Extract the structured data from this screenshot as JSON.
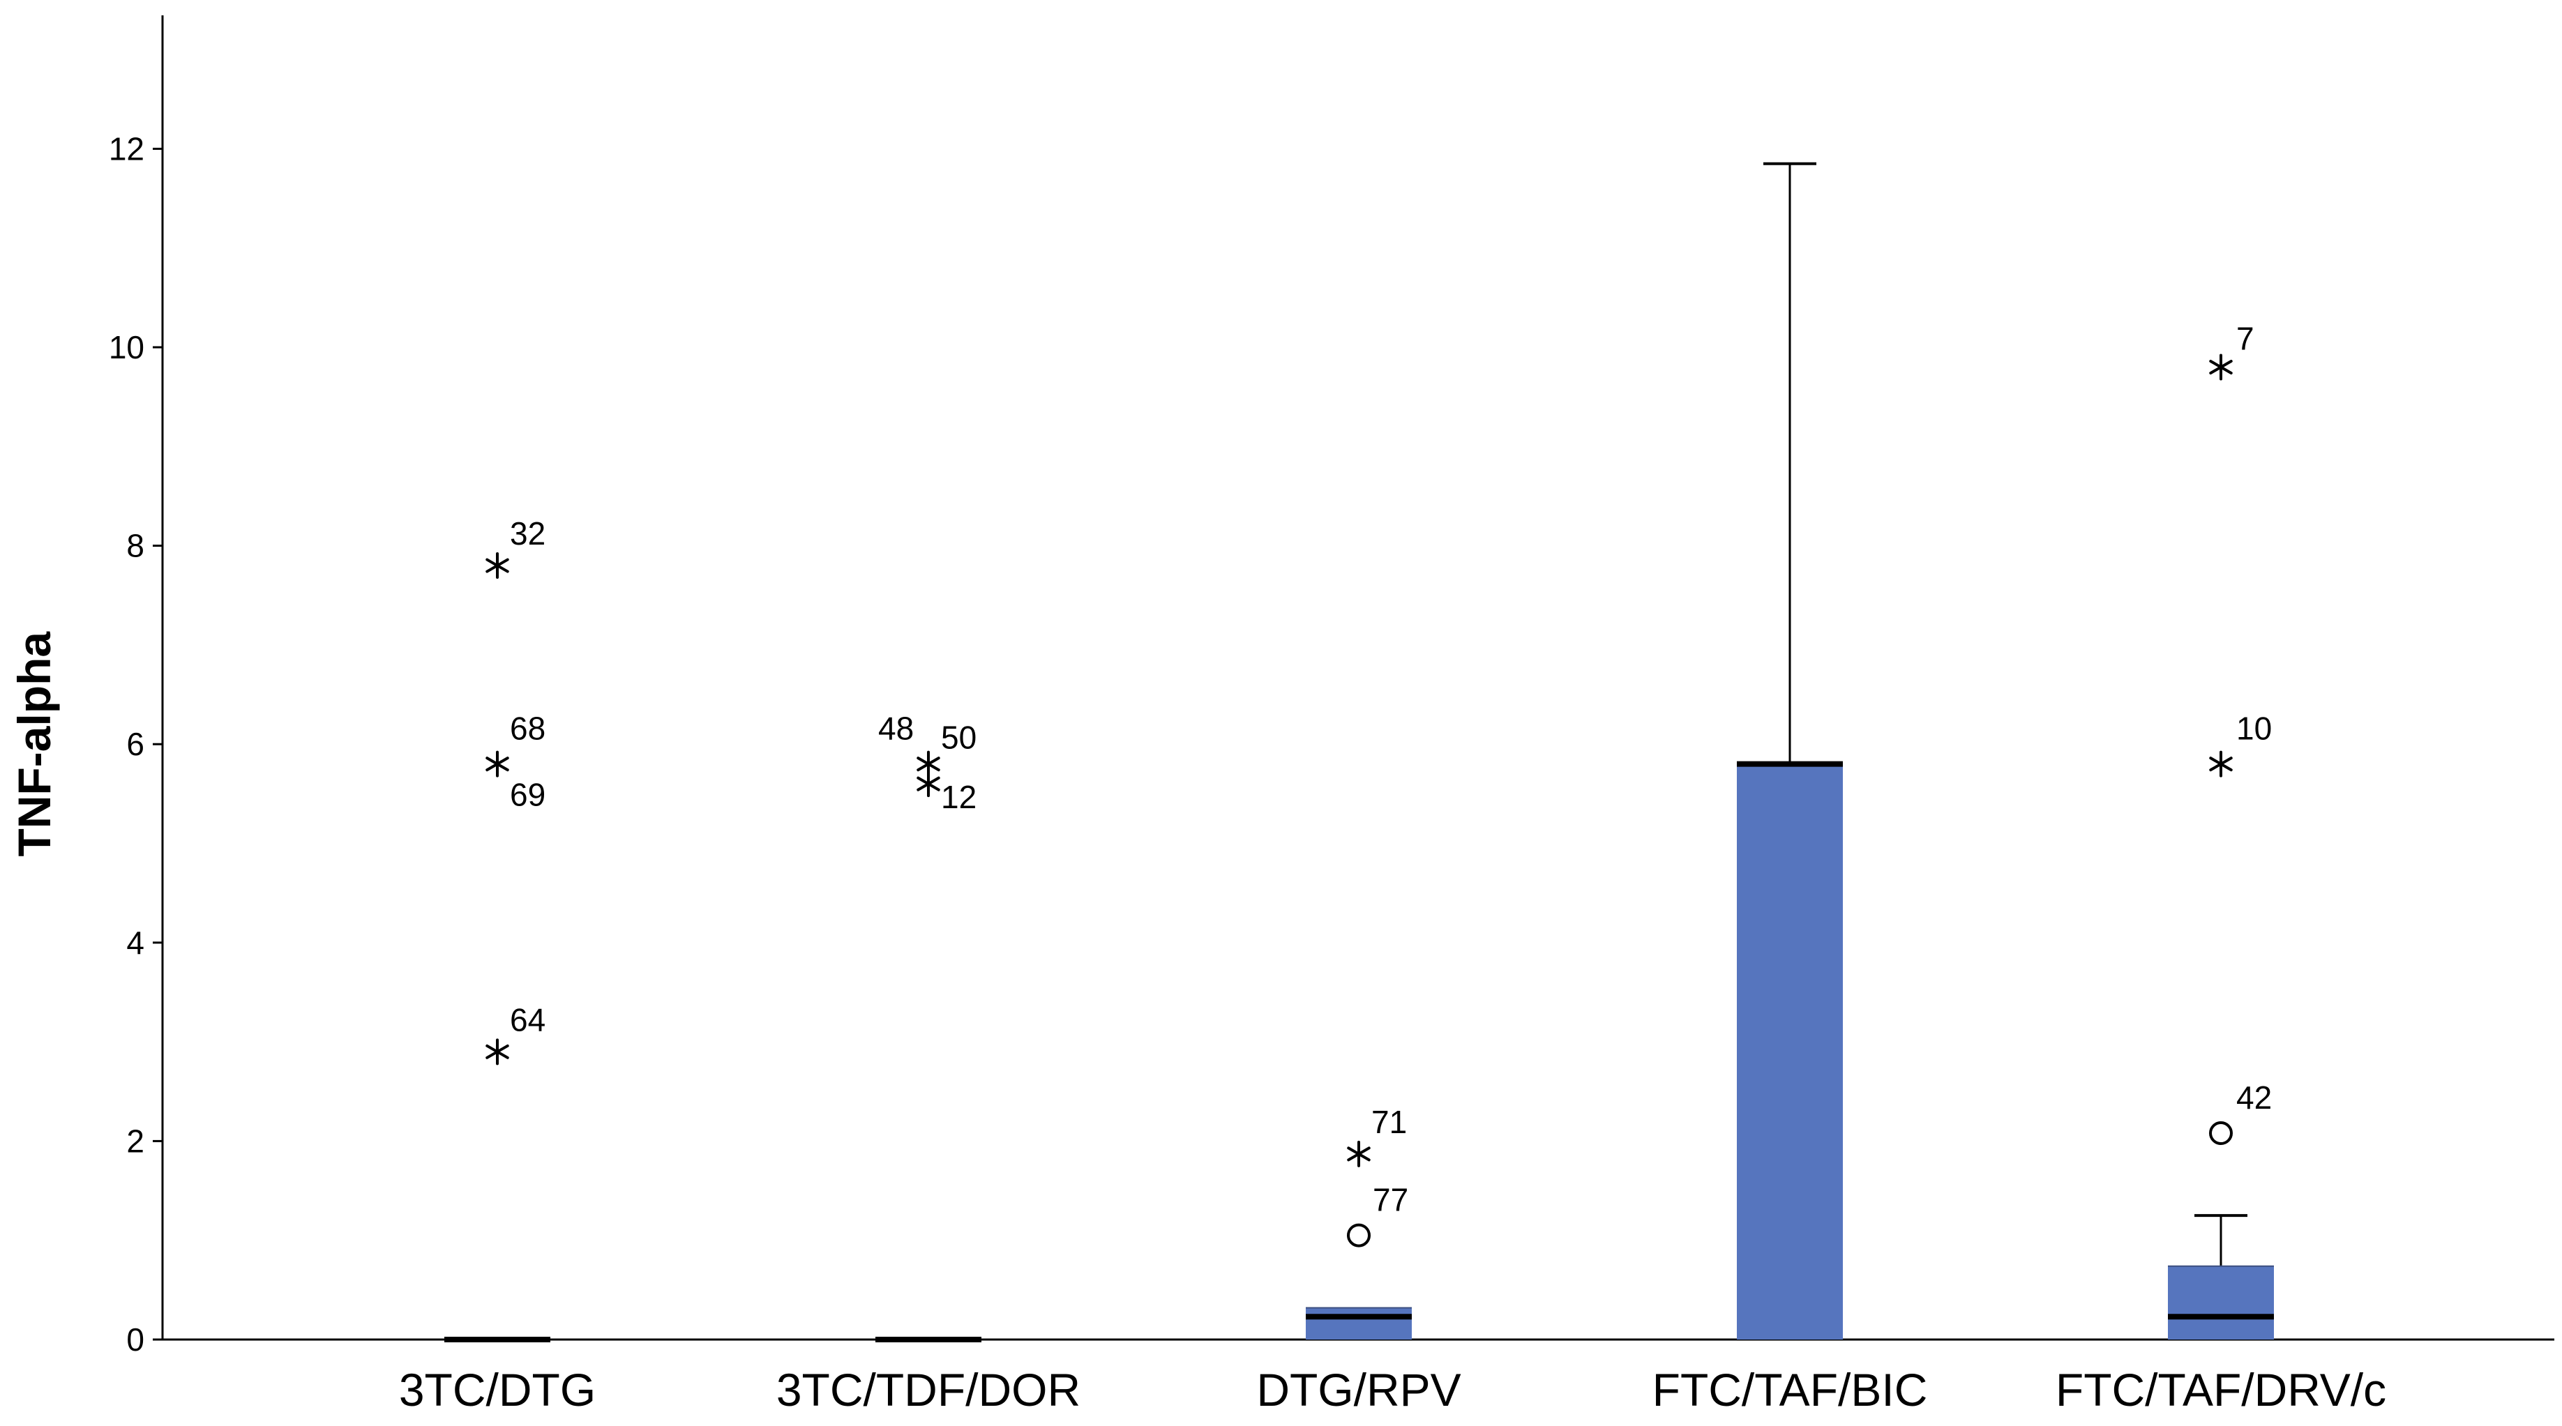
{
  "chart_data": {
    "type": "boxplot",
    "title": "",
    "xlabel": "",
    "ylabel": "TNF-alpha",
    "ylim": [
      0,
      13.4
    ],
    "yticks": [
      0,
      2,
      4,
      6,
      8,
      10,
      12
    ],
    "ytick_labels": [
      "0",
      "2",
      "4",
      "6",
      "8",
      "10",
      "12"
    ],
    "grid": false,
    "box_color": "#5675BE",
    "categories": [
      "3TC/DTG",
      "3TC/TDF/DOR",
      "DTG/RPV",
      "FTC/TAF/BIC",
      "FTC/TAF/DRV/c"
    ],
    "boxes": [
      {
        "category": "3TC/DTG",
        "min": 0,
        "q1": 0,
        "median": 0,
        "q3": 0,
        "max": 0,
        "outliers": [
          {
            "id": "32",
            "value": 7.8,
            "marker": "star"
          },
          {
            "id": "68",
            "value": 5.8,
            "marker": "star"
          },
          {
            "id": "69",
            "value": 5.8,
            "marker": "star"
          },
          {
            "id": "64",
            "value": 2.9,
            "marker": "star"
          }
        ]
      },
      {
        "category": "3TC/TDF/DOR",
        "min": 0,
        "q1": 0,
        "median": 0,
        "q3": 0,
        "max": 0,
        "outliers": [
          {
            "id": "48",
            "value": 5.8,
            "marker": "star"
          },
          {
            "id": "50",
            "value": 5.8,
            "marker": "star"
          },
          {
            "id": "12",
            "value": 5.6,
            "marker": "star"
          }
        ]
      },
      {
        "category": "DTG/RPV",
        "min": 0,
        "q1": 0,
        "median": 0.23,
        "q3": 0.32,
        "max": 0.32,
        "outliers": [
          {
            "id": "71",
            "value": 1.87,
            "marker": "star"
          },
          {
            "id": "77",
            "value": 1.05,
            "marker": "circle"
          }
        ]
      },
      {
        "category": "FTC/TAF/BIC",
        "min": 0,
        "q1": 0,
        "median": 5.8,
        "q3": 5.8,
        "max": 11.85,
        "outliers": []
      },
      {
        "category": "FTC/TAF/DRV/c",
        "min": 0,
        "q1": 0,
        "median": 0.23,
        "q3": 0.74,
        "max": 1.25,
        "outliers": [
          {
            "id": "7",
            "value": 9.8,
            "marker": "star"
          },
          {
            "id": "10",
            "value": 5.8,
            "marker": "star"
          },
          {
            "id": "42",
            "value": 2.08,
            "marker": "circle"
          }
        ]
      }
    ]
  }
}
